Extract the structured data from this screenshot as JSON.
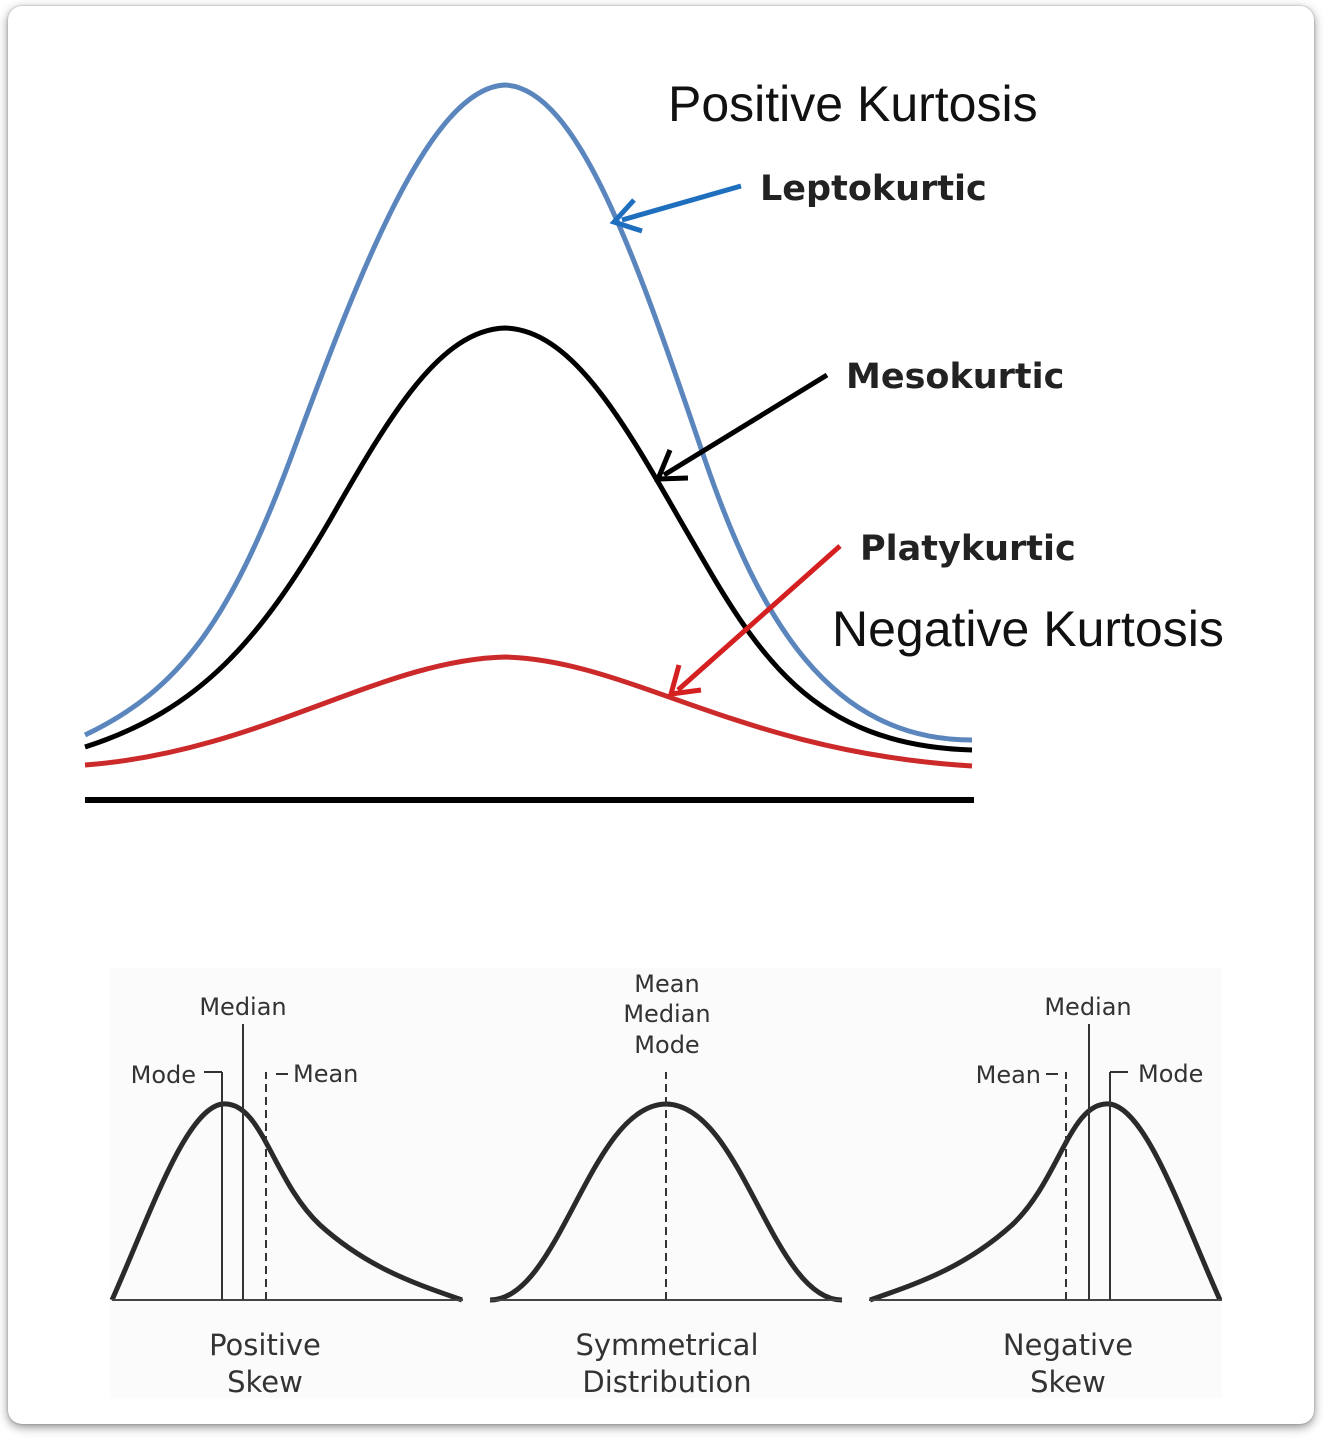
{
  "kurtosis": {
    "positive_label": "Positive Kurtosis",
    "negative_label": "Negative Kurtosis",
    "curves": {
      "leptokurtic": {
        "label": "Leptokurtic",
        "color": "#5b86bd"
      },
      "mesokurtic": {
        "label": "Mesokurtic",
        "color": "#000000"
      },
      "platykurtic": {
        "label": "Platykurtic",
        "color": "#cc2a2a"
      }
    },
    "arrow_colors": {
      "leptokurtic": "#1f6fbf",
      "mesokurtic": "#000000",
      "platykurtic": "#d42020"
    }
  },
  "skew": {
    "positive": {
      "caption_line1": "Positive",
      "caption_line2": "Skew",
      "median": "Median",
      "mode": "Mode",
      "mean": "Mean"
    },
    "symmetrical": {
      "caption_line1": "Symmetrical",
      "caption_line2": "Distribution",
      "mean": "Mean",
      "median": "Median",
      "mode": "Mode"
    },
    "negative": {
      "caption_line1": "Negative",
      "caption_line2": "Skew",
      "median": "Median",
      "mean": "Mean",
      "mode": "Mode"
    }
  }
}
